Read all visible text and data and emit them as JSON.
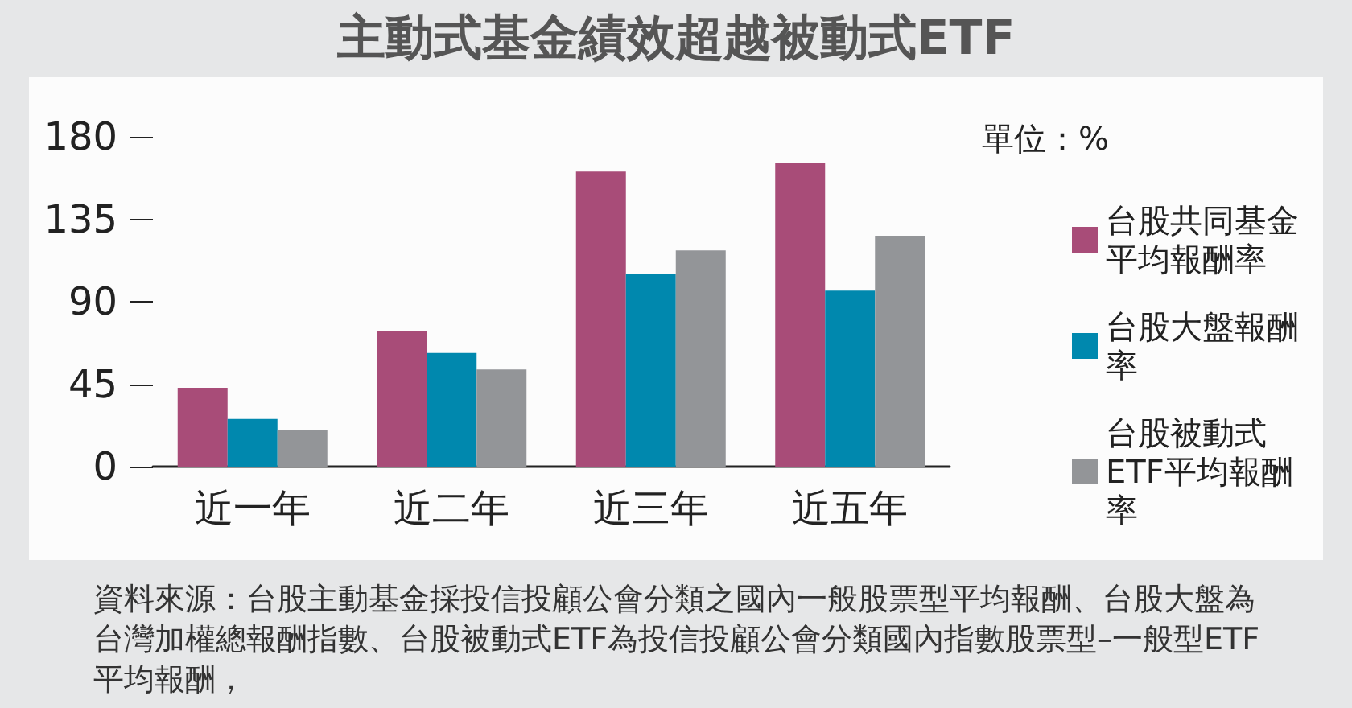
{
  "chart_data": {
    "type": "bar",
    "title": "主動式基金績效超越被動式ETF",
    "legend_title": "單位：%",
    "categories": [
      "近一年",
      "近二年",
      "近三年",
      "近五年"
    ],
    "series": [
      {
        "name": "台股共同基金平均報酬率",
        "color": "#a84c78",
        "values": [
          43,
          74,
          161,
          166
        ]
      },
      {
        "name": "台股大盤報酬率",
        "color": "#0088ae",
        "values": [
          26,
          62,
          105,
          96
        ]
      },
      {
        "name": "台股被動式ETF平均報酬率",
        "color": "#939598",
        "values": [
          20,
          53,
          118,
          126
        ]
      }
    ],
    "ylim": [
      0,
      180
    ],
    "yticks": [
      0,
      45,
      90,
      135,
      180
    ],
    "grid": false,
    "legend": "right",
    "annotations": [
      "資料來源：台股主動基金採投信投顧公會分類之國內一般股票型平均報酬、台股大盤為台灣加權總報酬指數、台股被動式ETF為投信投顧公會分類國內指數股票型–一般型ETF平均報酬，"
    ]
  }
}
